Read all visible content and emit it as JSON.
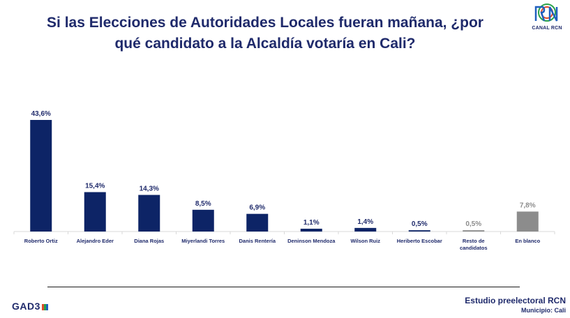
{
  "title_line1": "Si las Elecciones de Autoridades Locales fueran mañana, ¿por",
  "title_line2": "qué candidato a la Alcaldía votaría en Cali?",
  "logo": {
    "caption": "CANAL RCN",
    "icon": "rcn-logo-icon"
  },
  "footer": {
    "brand": "GAD3",
    "study": "Estudio preelectoral RCN",
    "municipio": "Municipio:  Cali"
  },
  "colors": {
    "candidate": "#0d2466",
    "other": "#8c8c8c",
    "title": "#1f2a6b"
  },
  "chart_data": {
    "type": "bar",
    "title": "Si las Elecciones de Autoridades Locales fueran mañana, ¿por qué candidato a la Alcaldía votaría en Cali?",
    "ylim": [
      0,
      43.6
    ],
    "categories": [
      [
        "Roberto Ortiz"
      ],
      [
        "Alejandro Eder"
      ],
      [
        "Diana Rojas"
      ],
      [
        "Miyerlandi Torres"
      ],
      [
        "Danis Rentería"
      ],
      [
        "Deninson Mendoza"
      ],
      [
        "Wilson Ruiz"
      ],
      [
        "Heriberto Escobar"
      ],
      [
        "Resto de",
        "candidatos"
      ],
      [
        "En blanco"
      ]
    ],
    "values": [
      43.6,
      15.4,
      14.3,
      8.5,
      6.9,
      1.1,
      1.4,
      0.5,
      0.5,
      7.8
    ],
    "labels": [
      "43,6%",
      "15,4%",
      "14,3%",
      "8,5%",
      "6,9%",
      "1,1%",
      "1,4%",
      "0,5%",
      "0,5%",
      "7,8%"
    ],
    "group": [
      "candidate",
      "candidate",
      "candidate",
      "candidate",
      "candidate",
      "candidate",
      "candidate",
      "candidate",
      "other",
      "other"
    ]
  }
}
